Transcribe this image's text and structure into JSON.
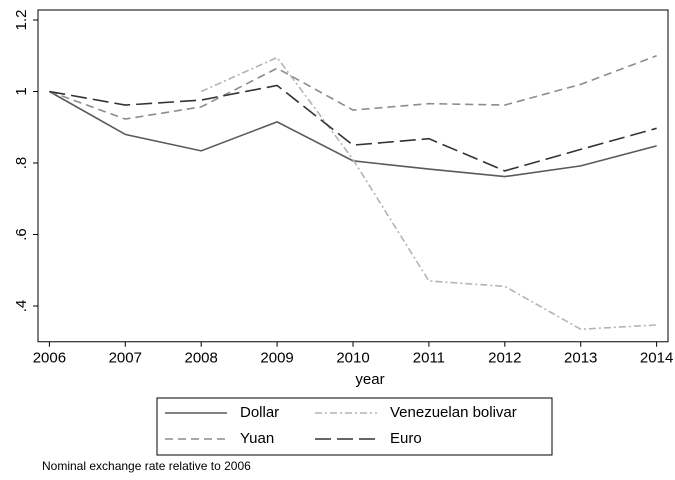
{
  "chart_data": {
    "type": "line",
    "x_label": "year",
    "note": "Nominal exchange rate relative to 2006",
    "x": [
      2006,
      2007,
      2008,
      2009,
      2010,
      2011,
      2012,
      2013,
      2014
    ],
    "xlim": [
      2005.85,
      2014.15
    ],
    "xticks": [
      2006,
      2007,
      2008,
      2009,
      2010,
      2011,
      2012,
      2013,
      2014
    ],
    "ylim": [
      0.3,
      1.2
    ],
    "yticks": [
      {
        "value": 0.4,
        "label": ".4"
      },
      {
        "value": 0.6,
        "label": ".6"
      },
      {
        "value": 0.8,
        "label": ".8"
      },
      1,
      1.2
    ],
    "grid": false,
    "legend": "bottom",
    "series": [
      {
        "name": "Dollar",
        "color": "#5a5a5a",
        "linestyle": "solid",
        "values": [
          1,
          0.88,
          0.834,
          0.915,
          0.806,
          0.783,
          0.762,
          0.792,
          0.848
        ]
      },
      {
        "name": "Venezuelan bolivar",
        "color": "#b4b4b4",
        "linestyle": "dashdot",
        "values": [
          null,
          null,
          1.0,
          1.095,
          0.81,
          0.47,
          0.455,
          0.335,
          0.347
        ]
      },
      {
        "name": "Yuan",
        "color": "#8c8c8c",
        "linestyle": "dash",
        "values": [
          1,
          0.923,
          0.957,
          1.065,
          0.948,
          0.966,
          0.962,
          1.02,
          1.1
        ]
      },
      {
        "name": "Euro",
        "color": "#333333",
        "linestyle": "longdash",
        "values": [
          1,
          0.962,
          0.976,
          1.017,
          0.85,
          0.868,
          0.778,
          0.838,
          0.897
        ]
      }
    ]
  }
}
